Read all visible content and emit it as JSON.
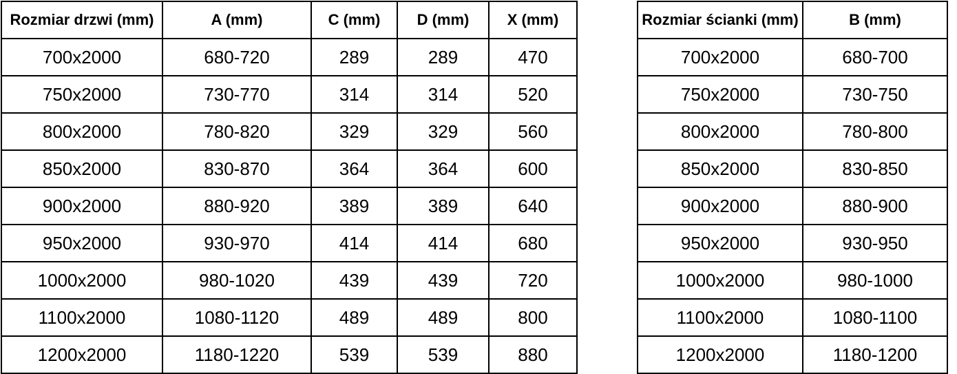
{
  "colors": {
    "border": "#000000",
    "text": "#000000",
    "background": "#ffffff"
  },
  "tables": [
    {
      "name": "door-sizes",
      "headers": [
        "Rozmiar drzwi (mm)",
        "A (mm)",
        "C (mm)",
        "D (mm)",
        "X (mm)"
      ],
      "rows": [
        [
          "700x2000",
          "680-720",
          "289",
          "289",
          "470"
        ],
        [
          "750x2000",
          "730-770",
          "314",
          "314",
          "520"
        ],
        [
          "800x2000",
          "780-820",
          "329",
          "329",
          "560"
        ],
        [
          "850x2000",
          "830-870",
          "364",
          "364",
          "600"
        ],
        [
          "900x2000",
          "880-920",
          "389",
          "389",
          "640"
        ],
        [
          "950x2000",
          "930-970",
          "414",
          "414",
          "680"
        ],
        [
          "1000x2000",
          "980-1020",
          "439",
          "439",
          "720"
        ],
        [
          "1100x2000",
          "1080-1120",
          "489",
          "489",
          "800"
        ],
        [
          "1200x2000",
          "1180-1220",
          "539",
          "539",
          "880"
        ]
      ]
    },
    {
      "name": "wall-sizes",
      "headers": [
        "Rozmiar ścianki (mm)",
        "B (mm)"
      ],
      "rows": [
        [
          "700x2000",
          "680-700"
        ],
        [
          "750x2000",
          "730-750"
        ],
        [
          "800x2000",
          "780-800"
        ],
        [
          "850x2000",
          "830-850"
        ],
        [
          "900x2000",
          "880-900"
        ],
        [
          "950x2000",
          "930-950"
        ],
        [
          "1000x2000",
          "980-1000"
        ],
        [
          "1100x2000",
          "1080-1100"
        ],
        [
          "1200x2000",
          "1180-1200"
        ]
      ]
    }
  ]
}
